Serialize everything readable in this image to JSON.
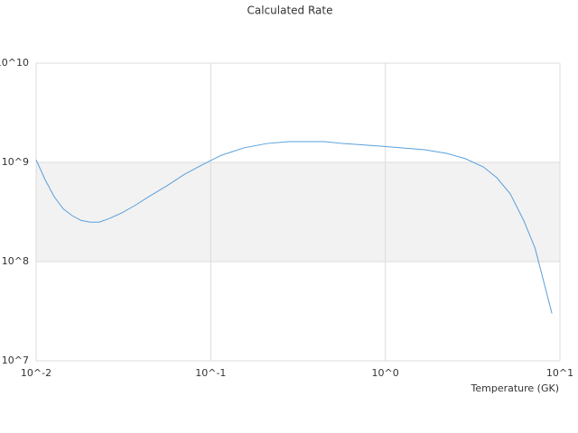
{
  "chart_data": {
    "type": "line",
    "title": "Calculated Rate",
    "x_label": "Temperature (GK)",
    "x_log": true,
    "y_log": true,
    "grid": true,
    "xlim": [
      0.01,
      10
    ],
    "ylim": [
      10000000,
      10000000000
    ],
    "xticks": [
      {
        "value": 0.01,
        "label": "10^-2"
      },
      {
        "value": 0.1,
        "label": "10^-1"
      },
      {
        "value": 1,
        "label": "10^0"
      },
      {
        "value": 10,
        "label": "10^1"
      }
    ],
    "yticks": [
      {
        "value": 10000000,
        "label": "10^7"
      },
      {
        "value": 100000000,
        "label": "10^8"
      },
      {
        "value": 1000000000,
        "label": "10^9"
      },
      {
        "value": 10000000000,
        "label": "10^10"
      }
    ],
    "x": [
      0.01,
      0.0113,
      0.0127,
      0.0143,
      0.0161,
      0.0181,
      0.0204,
      0.023,
      0.026,
      0.031,
      0.037,
      0.044,
      0.056,
      0.071,
      0.091,
      0.115,
      0.155,
      0.21,
      0.28,
      0.45,
      0.57,
      0.92,
      1.68,
      2.26,
      2.87,
      3.64,
      4.35,
      5.2,
      6.2,
      7.2,
      9.0
    ],
    "series": [
      {
        "color": "#5a9fdc",
        "values": [
          1060000000,
          660000000,
          450000000,
          340000000,
          290000000,
          260000000,
          250000000,
          250000000,
          270000000,
          310000000,
          370000000,
          450000000,
          580000000,
          760000000,
          960000000,
          1180000000,
          1400000000,
          1550000000,
          1620000000,
          1620000000,
          1550000000,
          1460000000,
          1340000000,
          1230000000,
          1090000000,
          900000000,
          700000000,
          480000000,
          260000000,
          137000000,
          30000000
        ]
      }
    ]
  }
}
